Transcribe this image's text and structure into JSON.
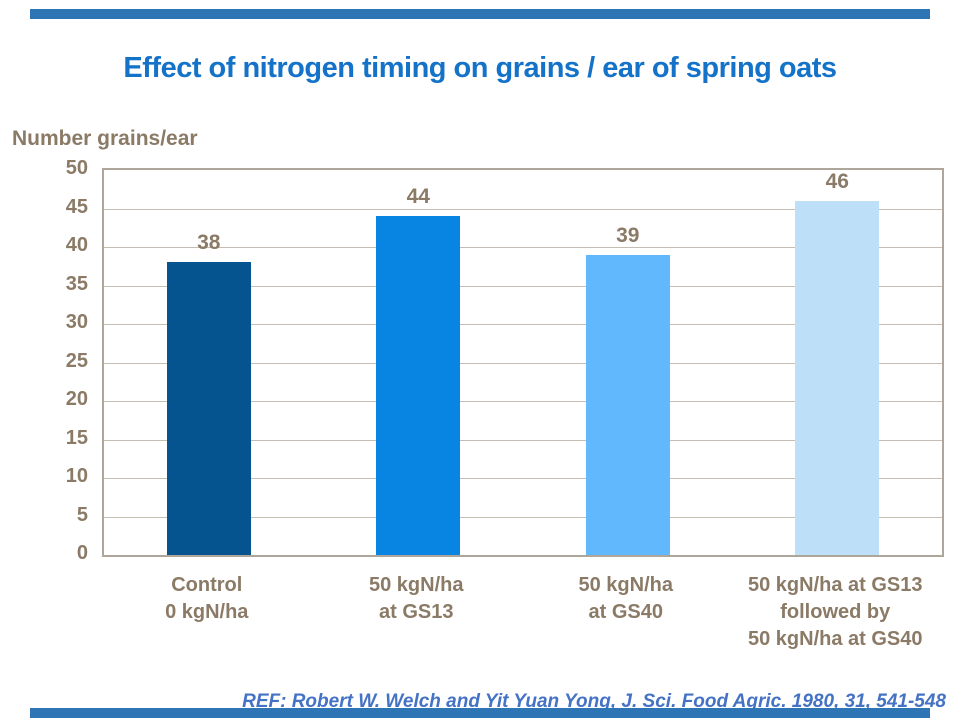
{
  "slide": {
    "title": "Effect of nitrogen timing on grains / ear of spring oats",
    "reference": "REF: Robert W. Welch and Yit Yuan Yong, J. Sci. Food Agric. 1980, 31, 541-548",
    "accent_bar_color": "#2E75B6",
    "title_color": "#1472C8",
    "reference_color": "#4472C4",
    "chart_text_color": "#8A7A66"
  },
  "chart_data": {
    "type": "bar",
    "title": "Effect of nitrogen timing on grains / ear of spring oats",
    "xlabel": "",
    "ylabel": "Number grains/ear",
    "categories": [
      "Control\n0 kgN/ha",
      "50 kgN/ha\nat GS13",
      "50 kgN/ha\nat GS40",
      "50 kgN/ha at GS13\nfollowed by\n50 kgN/ha at GS40"
    ],
    "values": [
      38,
      44,
      39,
      46
    ],
    "data_labels": [
      "38",
      "44",
      "39",
      "46"
    ],
    "bar_colors": [
      "#05548F",
      "#0884E3",
      "#62B8FC",
      "#BDDFF8"
    ],
    "ylim": [
      0,
      50
    ],
    "ytick_step": 5,
    "ytick_labels": [
      "0",
      "5",
      "10",
      "15",
      "20",
      "25",
      "30",
      "35",
      "40",
      "45",
      "50"
    ],
    "grid": true,
    "legend": false
  }
}
